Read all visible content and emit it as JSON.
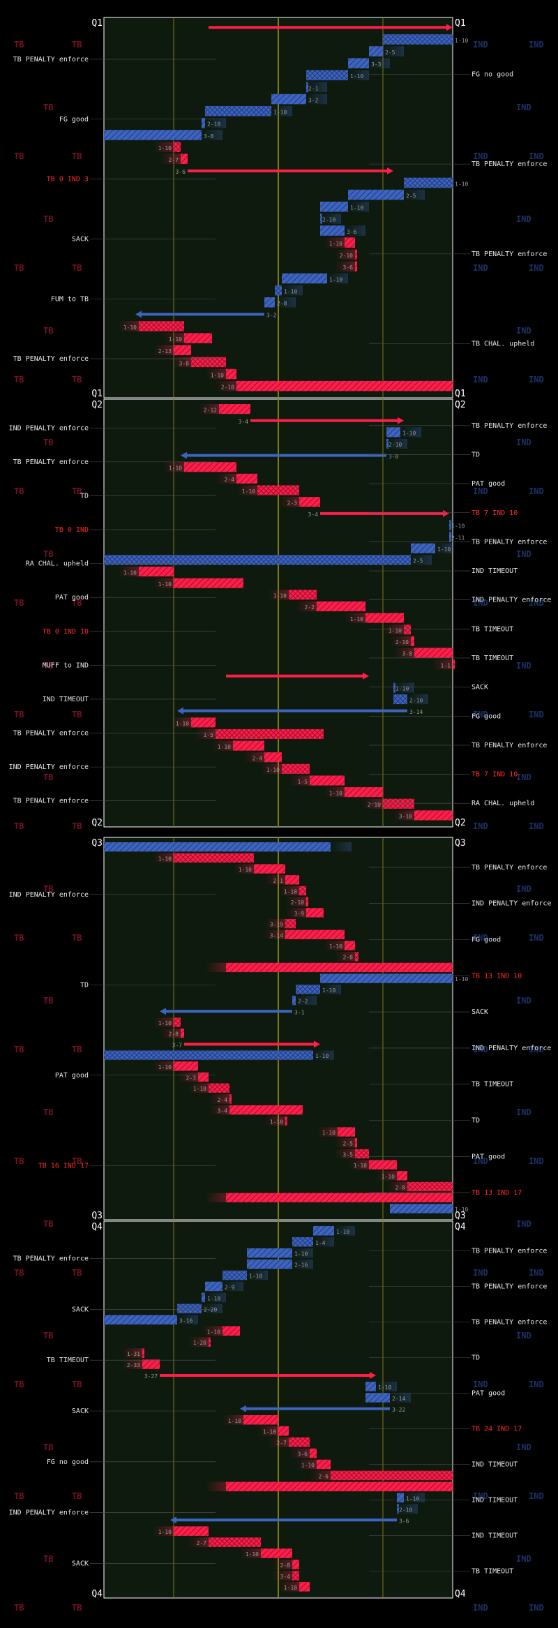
{
  "colors": {
    "TB": "#ff1e4a",
    "IND": "#3d64c0",
    "field": "#0d1a0d",
    "line": "#7f7f14",
    "text": "#e8e8e8",
    "score": "#ff2a2a"
  },
  "watermarks": {
    "tb": "TB",
    "ind": "IND"
  },
  "chart_data": {
    "type": "drive-chart",
    "quarters": [
      {
        "label": "Q1",
        "plays": [
          {
            "team": "TB",
            "dd": "",
            "start": 30,
            "end": 100,
            "kind": "arrow"
          },
          {
            "team": "IND",
            "dd": "1-10",
            "start": 100,
            "end": 80
          },
          {
            "team": "IND",
            "dd": "2-5",
            "start": 80,
            "end": 76
          },
          {
            "team": "IND",
            "dd": "3-3",
            "start": 76,
            "end": 70
          },
          {
            "team": "IND",
            "dd": "1-10",
            "start": 70,
            "end": 58
          },
          {
            "team": "IND",
            "dd": "2-1",
            "start": 58,
            "end": 58
          },
          {
            "team": "IND",
            "dd": "3-2",
            "start": 58,
            "end": 48
          },
          {
            "team": "IND",
            "dd": "1-10",
            "start": 48,
            "end": 29
          },
          {
            "team": "IND",
            "dd": "2-10",
            "start": 29,
            "end": 28
          },
          {
            "team": "IND",
            "dd": "3-8",
            "start": 28,
            "end": 0
          },
          {
            "team": "TB",
            "dd": "1-10",
            "start": 20,
            "end": 22
          },
          {
            "team": "TB",
            "dd": "2-7",
            "start": 22,
            "end": 24
          },
          {
            "team": "TB",
            "dd": "3-6",
            "start": 24,
            "end": 83,
            "kind": "arrow"
          },
          {
            "team": "IND",
            "dd": "1-10",
            "start": 100,
            "end": 86
          },
          {
            "team": "IND",
            "dd": "2-5",
            "start": 86,
            "end": 70
          },
          {
            "team": "IND",
            "dd": "1-10",
            "start": 70,
            "end": 62
          },
          {
            "team": "IND",
            "dd": "2-10",
            "start": 62,
            "end": 62
          },
          {
            "team": "IND",
            "dd": "3-6",
            "start": 62,
            "end": 69
          },
          {
            "team": "TB",
            "dd": "1-10",
            "start": 69,
            "end": 72
          },
          {
            "team": "TB",
            "dd": "2-10",
            "start": 72,
            "end": 72
          },
          {
            "team": "TB",
            "dd": "3-6",
            "start": 72,
            "end": 72
          },
          {
            "team": "IND",
            "dd": "1-10",
            "start": 64,
            "end": 51
          },
          {
            "team": "IND",
            "dd": "1-10",
            "start": 51,
            "end": 49
          },
          {
            "team": "IND",
            "dd": "2-8",
            "start": 49,
            "end": 46
          },
          {
            "team": "IND",
            "dd": "3-2",
            "start": 46,
            "end": 9,
            "kind": "arrow"
          },
          {
            "team": "TB",
            "dd": "1-10",
            "start": 10,
            "end": 23
          },
          {
            "team": "TB",
            "dd": "1-10",
            "start": 23,
            "end": 31
          },
          {
            "team": "TB",
            "dd": "2-13",
            "start": 20,
            "end": 25
          },
          {
            "team": "TB",
            "dd": "3-8",
            "start": 25,
            "end": 35
          },
          {
            "team": "TB",
            "dd": "1-10",
            "start": 35,
            "end": 38
          },
          {
            "team": "TB",
            "dd": "2-10",
            "start": 38,
            "end": 100
          }
        ],
        "left_notes": [
          "TB PENALTY enforce",
          "FG good",
          "TB 0 IND 3",
          "SACK",
          "FUM to TB",
          "TB PENALTY enforce"
        ],
        "right_notes": [
          "FG no good",
          "TB PENALTY enforce",
          "TB PENALTY enforce",
          "TB CHAL. upheld"
        ]
      },
      {
        "label": "Q2",
        "plays": [
          {
            "team": "TB",
            "dd": "2-12",
            "start": 33,
            "end": 42
          },
          {
            "team": "TB",
            "dd": "3-4",
            "start": 42,
            "end": 86,
            "kind": "arrow"
          },
          {
            "team": "IND",
            "dd": "1-10",
            "start": 85,
            "end": 81
          },
          {
            "team": "IND",
            "dd": "2-10",
            "start": 81,
            "end": 81
          },
          {
            "team": "IND",
            "dd": "3-8",
            "start": 81,
            "end": 22,
            "kind": "arrow"
          },
          {
            "team": "TB",
            "dd": "1-10",
            "start": 23,
            "end": 38
          },
          {
            "team": "TB",
            "dd": "2-4",
            "start": 38,
            "end": 44
          },
          {
            "team": "TB",
            "dd": "1-10",
            "start": 44,
            "end": 56
          },
          {
            "team": "TB",
            "dd": "2-3",
            "start": 56,
            "end": 62
          },
          {
            "team": "TB",
            "dd": "3-4",
            "start": 62,
            "end": 99,
            "kind": "arrow"
          },
          {
            "team": "IND",
            "dd": "1-10",
            "start": 99,
            "end": 99
          },
          {
            "team": "IND",
            "dd": "2-11",
            "start": 99,
            "end": 99
          },
          {
            "team": "IND",
            "dd": "1-10",
            "start": 95,
            "end": 88
          },
          {
            "team": "IND",
            "dd": "2-5",
            "start": 88,
            "end": 0
          },
          {
            "team": "TB",
            "dd": "1-10",
            "start": 10,
            "end": 20
          },
          {
            "team": "TB",
            "dd": "1-10",
            "start": 20,
            "end": 40
          },
          {
            "team": "TB",
            "dd": "1-10",
            "start": 53,
            "end": 61
          },
          {
            "team": "TB",
            "dd": "2-2",
            "start": 61,
            "end": 75
          },
          {
            "team": "TB",
            "dd": "1-10",
            "start": 75,
            "end": 86
          },
          {
            "team": "TB",
            "dd": "1-10",
            "start": 86,
            "end": 88
          },
          {
            "team": "TB",
            "dd": "2-10",
            "start": 88,
            "end": 89
          },
          {
            "team": "TB",
            "dd": "3-8",
            "start": 89,
            "end": 100
          },
          {
            "team": "TB",
            "dd": "1-1",
            "start": 100,
            "end": 100
          },
          {
            "team": "TB",
            "dd": "",
            "start": 35,
            "end": 76,
            "kind": "arrow"
          },
          {
            "team": "IND",
            "dd": "1-10",
            "start": 83,
            "end": 83
          },
          {
            "team": "IND",
            "dd": "2-10",
            "start": 83,
            "end": 87
          },
          {
            "team": "IND",
            "dd": "3-14",
            "start": 87,
            "end": 21,
            "kind": "arrow"
          },
          {
            "team": "TB",
            "dd": "1-10",
            "start": 25,
            "end": 32
          },
          {
            "team": "TB",
            "dd": "1-5",
            "start": 32,
            "end": 63
          },
          {
            "team": "TB",
            "dd": "1-10",
            "start": 37,
            "end": 46
          },
          {
            "team": "TB",
            "dd": "2-4",
            "start": 46,
            "end": 51
          },
          {
            "team": "TB",
            "dd": "1-10",
            "start": 51,
            "end": 59
          },
          {
            "team": "TB",
            "dd": "1-5",
            "start": 59,
            "end": 69
          },
          {
            "team": "TB",
            "dd": "1-10",
            "start": 69,
            "end": 80
          },
          {
            "team": "TB",
            "dd": "2-10",
            "start": 80,
            "end": 89
          },
          {
            "team": "TB",
            "dd": "3-10",
            "start": 89,
            "end": 100
          }
        ],
        "left_notes": [
          "IND PENALTY enforce",
          "TB PENALTY enforce",
          "TD",
          "TB 0 IND",
          "RA CHAL. upheld",
          "PAT good",
          "TB 0 IND 10",
          "MUFF to IND",
          "IND TIMEOUT",
          "TB PENALTY enforce",
          "IND PENALTY enforce",
          "TB PENALTY enforce"
        ],
        "right_notes": [
          "TB PENALTY enforce",
          "TD",
          "PAT good",
          "TB 7 IND 10",
          "TB PENALTY enforce",
          "IND TIMEOUT",
          "IND PENALTY enforce",
          "TB TIMEOUT",
          "TB TIMEOUT",
          "SACK",
          "FG good",
          "TB PENALTY enforce",
          "TB 7 IND 10",
          "RA CHAL. upheld"
        ]
      },
      {
        "label": "Q3",
        "plays": [
          {
            "team": "IND",
            "dd": "",
            "start": 65,
            "end": 0
          },
          {
            "team": "TB",
            "dd": "1-10",
            "start": 20,
            "end": 43
          },
          {
            "team": "TB",
            "dd": "1-10",
            "start": 43,
            "end": 52
          },
          {
            "team": "TB",
            "dd": "2-1",
            "start": 52,
            "end": 56
          },
          {
            "team": "TB",
            "dd": "1-10",
            "start": 56,
            "end": 58
          },
          {
            "team": "TB",
            "dd": "2-10",
            "start": 58,
            "end": 58
          },
          {
            "team": "TB",
            "dd": "3-9",
            "start": 58,
            "end": 63
          },
          {
            "team": "TB",
            "dd": "3-19",
            "start": 52,
            "end": 55
          },
          {
            "team": "TB",
            "dd": "3-14",
            "start": 52,
            "end": 69
          },
          {
            "team": "TB",
            "dd": "1-10",
            "start": 69,
            "end": 72
          },
          {
            "team": "TB",
            "dd": "2-8",
            "start": 72,
            "end": 73
          },
          {
            "team": "TB",
            "dd": "",
            "start": 35,
            "end": 100
          },
          {
            "team": "IND",
            "dd": "1-10",
            "start": 100,
            "end": 62
          },
          {
            "team": "IND",
            "dd": "1-10",
            "start": 62,
            "end": 55
          },
          {
            "team": "IND",
            "dd": "2-2",
            "start": 55,
            "end": 54
          },
          {
            "team": "IND",
            "dd": "3-1",
            "start": 54,
            "end": 16,
            "kind": "arrow"
          },
          {
            "team": "TB",
            "dd": "1-10",
            "start": 20,
            "end": 22
          },
          {
            "team": "TB",
            "dd": "2-8",
            "start": 22,
            "end": 23
          },
          {
            "team": "TB",
            "dd": "3-7",
            "start": 23,
            "end": 62,
            "kind": "arrow"
          },
          {
            "team": "IND",
            "dd": "1-10",
            "start": 60,
            "end": 0
          },
          {
            "team": "TB",
            "dd": "1-10",
            "start": 20,
            "end": 27
          },
          {
            "team": "TB",
            "dd": "2-3",
            "start": 27,
            "end": 30
          },
          {
            "team": "TB",
            "dd": "1-10",
            "start": 30,
            "end": 36
          },
          {
            "team": "TB",
            "dd": "2-4",
            "start": 36,
            "end": 36
          },
          {
            "team": "TB",
            "dd": "3-4",
            "start": 36,
            "end": 57
          },
          {
            "team": "TB",
            "dd": "1-10",
            "start": 52,
            "end": 52
          },
          {
            "team": "TB",
            "dd": "1-10",
            "start": 67,
            "end": 72
          },
          {
            "team": "TB",
            "dd": "2-5",
            "start": 72,
            "end": 72
          },
          {
            "team": "TB",
            "dd": "3-5",
            "start": 72,
            "end": 76
          },
          {
            "team": "TB",
            "dd": "1-10",
            "start": 76,
            "end": 84
          },
          {
            "team": "TB",
            "dd": "1-10",
            "start": 84,
            "end": 87
          },
          {
            "team": "TB",
            "dd": "2-8",
            "start": 87,
            "end": 100
          },
          {
            "team": "TB",
            "dd": "",
            "start": 35,
            "end": 100
          },
          {
            "team": "IND",
            "dd": "1-10",
            "start": 100,
            "end": 82
          }
        ],
        "left_notes": [
          "IND PENALTY enforce",
          "TD",
          "PAT good",
          "TB 16 IND 17"
        ],
        "right_notes": [
          "TB PENALTY enforce",
          "IND PENALTY enforce",
          "FG good",
          "TB 13 IND 10",
          "SACK",
          "IND PENALTY enforce",
          "TB TIMEOUT",
          "TD",
          "PAT good",
          "TB 13 IND 17"
        ]
      },
      {
        "label": "Q4",
        "plays": [
          {
            "team": "IND",
            "dd": "1-10",
            "start": 66,
            "end": 60
          },
          {
            "team": "IND",
            "dd": "1-4",
            "start": 60,
            "end": 54
          },
          {
            "team": "IND",
            "dd": "1-10",
            "start": 54,
            "end": 41
          },
          {
            "team": "IND",
            "dd": "2-16",
            "start": 54,
            "end": 41
          },
          {
            "team": "IND",
            "dd": "1-10",
            "start": 41,
            "end": 34
          },
          {
            "team": "IND",
            "dd": "2-9",
            "start": 34,
            "end": 29
          },
          {
            "team": "IND",
            "dd": "1-10",
            "start": 29,
            "end": 28
          },
          {
            "team": "IND",
            "dd": "2-20",
            "start": 28,
            "end": 21
          },
          {
            "team": "IND",
            "dd": "3-16",
            "start": 21,
            "end": 0
          },
          {
            "team": "TB",
            "dd": "1-10",
            "start": 34,
            "end": 39
          },
          {
            "team": "TB",
            "dd": "1-20",
            "start": 30,
            "end": 30
          },
          {
            "team": "TB",
            "dd": "1-31",
            "start": 11,
            "end": 11
          },
          {
            "team": "TB",
            "dd": "2-33",
            "start": 11,
            "end": 16
          },
          {
            "team": "TB",
            "dd": "3-27",
            "start": 16,
            "end": 78,
            "kind": "arrow"
          },
          {
            "team": "IND",
            "dd": "1-10",
            "start": 78,
            "end": 75
          },
          {
            "team": "IND",
            "dd": "2-14",
            "start": 75,
            "end": 82
          },
          {
            "team": "IND",
            "dd": "3-22",
            "start": 82,
            "end": 39,
            "kind": "arrow"
          },
          {
            "team": "TB",
            "dd": "1-10",
            "start": 40,
            "end": 50
          },
          {
            "team": "TB",
            "dd": "1-10",
            "start": 50,
            "end": 53
          },
          {
            "team": "TB",
            "dd": "2-7",
            "start": 53,
            "end": 59
          },
          {
            "team": "TB",
            "dd": "3-6",
            "start": 59,
            "end": 61
          },
          {
            "team": "TB",
            "dd": "1-10",
            "start": 61,
            "end": 65
          },
          {
            "team": "TB",
            "dd": "2-6",
            "start": 65,
            "end": 100
          },
          {
            "team": "TB",
            "dd": "",
            "start": 35,
            "end": 100
          },
          {
            "team": "IND",
            "dd": "1-10",
            "start": 86,
            "end": 84
          },
          {
            "team": "IND",
            "dd": "2-10",
            "start": 84,
            "end": 84
          },
          {
            "team": "IND",
            "dd": "3-6",
            "start": 84,
            "end": 19,
            "kind": "arrow"
          },
          {
            "team": "TB",
            "dd": "1-10",
            "start": 20,
            "end": 30
          },
          {
            "team": "TB",
            "dd": "2-7",
            "start": 30,
            "end": 45
          },
          {
            "team": "TB",
            "dd": "1-10",
            "start": 45,
            "end": 54
          },
          {
            "team": "TB",
            "dd": "2-8",
            "start": 54,
            "end": 56
          },
          {
            "team": "TB",
            "dd": "3-4",
            "start": 54,
            "end": 56
          },
          {
            "team": "TB",
            "dd": "1-10",
            "start": 56,
            "end": 59
          }
        ],
        "left_notes": [
          "TB PENALTY enforce",
          "SACK",
          "TB TIMEOUT",
          "SACK",
          "FG no good",
          "IND PENALTY enforce",
          "SACK"
        ],
        "right_notes": [
          "TB PENALTY enforce",
          "TB PENALTY enforce",
          "TB PENALTY enforce",
          "TD",
          "PAT good",
          "TB 24 IND 17",
          "IND TIMEOUT",
          "IND TIMEOUT",
          "IND TIMEOUT",
          "TB TIMEOUT"
        ]
      }
    ]
  }
}
